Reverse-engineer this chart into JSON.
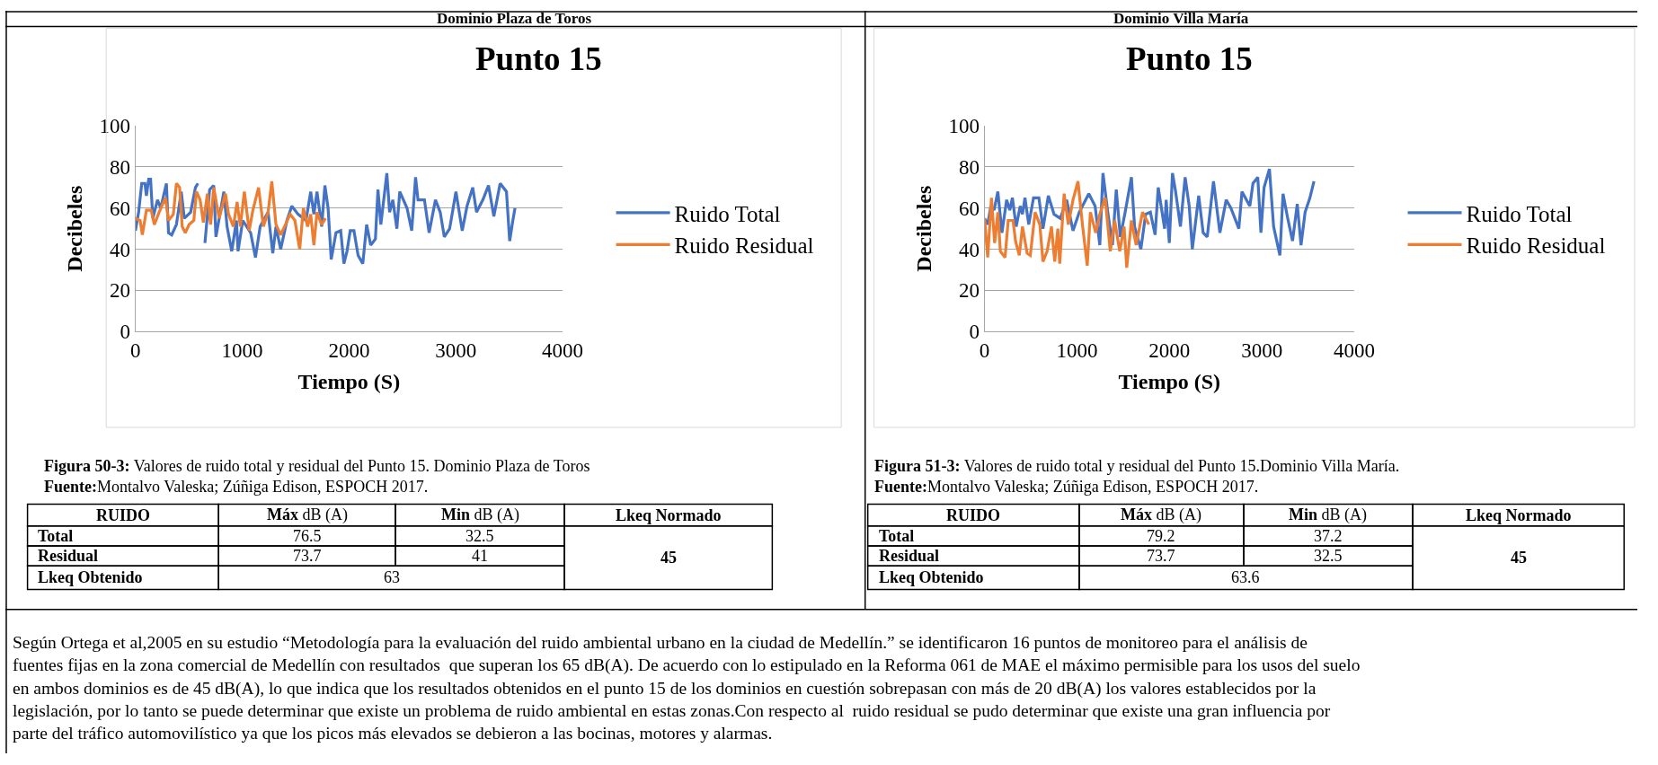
{
  "chart_data": [
    {
      "type": "line",
      "title": "Punto 15",
      "xlabel": "Tiempo (S)",
      "ylabel": "Decibeles",
      "xlim": [
        0,
        4000
      ],
      "xticks": [
        0,
        1000,
        2000,
        3000,
        4000
      ],
      "ylim": [
        0,
        100
      ],
      "yticks": [
        0,
        20,
        40,
        60,
        80,
        100
      ],
      "grid": "y",
      "legend": "right",
      "marker": "none",
      "line_style": "solid",
      "series": [
        {
          "name": "Ruido Total",
          "color": "#4472c4",
          "x": [
            0,
            30,
            59,
            89,
            103,
            124,
            142,
            163,
            207,
            237,
            290,
            310,
            340,
            384,
            429,
            458,
            517,
            562,
            585,
            621,
            651,
            695,
            733,
            754,
            828,
            858,
            902,
            946,
            961,
            1005,
            1079,
            1124,
            1168,
            1242,
            1286,
            1316,
            1360,
            1419,
            1464,
            1523,
            1597,
            1641,
            1671,
            1700,
            1744,
            1774,
            1804,
            1833,
            1878,
            1922,
            1952,
            1981,
            2011,
            2046,
            2085,
            2129,
            2165,
            2203,
            2247,
            2271,
            2298,
            2354,
            2380,
            2410,
            2448,
            2475,
            2543,
            2587,
            2623,
            2646,
            2706,
            2750,
            2809,
            2854,
            2892,
            2942,
            3001,
            3060,
            3105,
            3158,
            3194,
            3253,
            3306,
            3356,
            3415,
            3474,
            3504,
            3534,
            3554
          ],
          "values": [
            49,
            58,
            72,
            72,
            66,
            74,
            74,
            55,
            64,
            60,
            72,
            48,
            47,
            52,
            68,
            55,
            58,
            70,
            72,
            null,
            43,
            69,
            71,
            46,
            68,
            51,
            39,
            54,
            39,
            54,
            48,
            36,
            51,
            58,
            38,
            51,
            40,
            54,
            61,
            57,
            54,
            68,
            57,
            68,
            51,
            71,
            60,
            35,
            48,
            49,
            33,
            39,
            49,
            49,
            37,
            33,
            52,
            42,
            45,
            69,
            52,
            77,
            58,
            64,
            50,
            68,
            60,
            49,
            75,
            64,
            64,
            48,
            64,
            58,
            46,
            50,
            68,
            49,
            61,
            70,
            58,
            64,
            71,
            56,
            72,
            68,
            44,
            54,
            60
          ]
        },
        {
          "name": "Ruido Residual",
          "color": "#ed7d31",
          "x": [
            0,
            44,
            65,
            103,
            148,
            177,
            222,
            281,
            310,
            355,
            384,
            414,
            438,
            467,
            503,
            547,
            571,
            606,
            636,
            674,
            704,
            733,
            784,
            843,
            872,
            917,
            952,
            982,
            1020,
            1065,
            1100,
            1153,
            1198,
            1242,
            1277,
            1316,
            1360,
            1405,
            1449,
            1493,
            1538,
            1573,
            1612,
            1641,
            1671,
            1700,
            1744,
            1780
          ],
          "values": [
            55,
            54,
            47,
            59,
            59,
            52,
            58,
            65,
            54,
            57,
            72,
            70,
            51,
            48,
            52,
            54,
            68,
            64,
            53,
            67,
            52,
            70,
            55,
            67,
            57,
            51,
            63,
            51,
            68,
            49,
            59,
            70,
            51,
            58,
            73,
            52,
            47,
            52,
            57,
            54,
            40,
            60,
            51,
            57,
            42,
            58,
            52,
            55
          ]
        }
      ],
      "annotations": [
        "Dominio Plaza de Toros",
        "Figura 50-3: Valores de ruido total y residual del Punto 15. Dominio Plaza de Toros",
        "Fuente:Montalvo Valeska; Zúñiga Edison, ESPOCH 2017.",
        "RUIDO",
        "Máx dB (A)",
        "Min dB (A)",
        "Lkeq Normado",
        "Total",
        "76.5",
        "32.5",
        "45",
        "Residual",
        "73.7",
        "41",
        "Lkeq Obtenido",
        "63",
        "Según Ortega et al,2005 en su estudio “Metodología para la evaluación del ruido ambiental urbano en la ciudad de Medellín.” se identificaron 16 puntos de monitoreo para el análisis de fuentes fijas en la zona comercial de Medellín con resultados  que superan los 65 dB(A). De acuerdo con lo estipulado en la Reforma 061 de MAE el máximo permisible para los usos del suelo en ambos dominios es de 45 dB(A), lo que indica que los resultados obtenidos en el punto 15 de los dominios en cuestión sobrepasan con más de 20 dB(A) los valores establecidos por la legislación, por lo tanto se puede determinar que existe un problema de ruido ambiental en estas zonas.Con respecto al  ruido residual se pudo determinar que existe una gran influencia por parte del tráfico automovilístico ya que los picos más elevados se debieron a las bocinas, motores y alarmas."
      ]
    },
    {
      "type": "line",
      "title": "Punto 15",
      "xlabel": "Tiempo (S)",
      "ylabel": "Decibeles",
      "xlim": [
        0,
        4000
      ],
      "xticks": [
        0,
        1000,
        2000,
        3000,
        4000
      ],
      "ylim": [
        0,
        100
      ],
      "yticks": [
        0,
        20,
        40,
        60,
        80,
        100
      ],
      "grid": "y",
      "legend": "right",
      "marker": "none",
      "line_style": "solid",
      "series": [
        {
          "name": "Ruido Total",
          "color": "#4472c4",
          "x": [
            0,
            34,
            68,
            103,
            144,
            188,
            239,
            273,
            301,
            342,
            386,
            410,
            437,
            478,
            530,
            588,
            632,
            690,
            752,
            820,
            888,
            957,
            1025,
            1128,
            1196,
            1247,
            1281,
            1333,
            1384,
            1425,
            1469,
            1521,
            1589,
            1623,
            1691,
            1743,
            1794,
            1845,
            1879,
            1948,
            1965,
            1999,
            2033,
            2067,
            2119,
            2170,
            2214,
            2248,
            2317,
            2365,
            2409,
            2477,
            2546,
            2614,
            2665,
            2751,
            2785,
            2870,
            2904,
            2956,
            2990,
            3024,
            3082,
            3127,
            3195,
            3229,
            3280,
            3332,
            3383,
            3424,
            3468,
            3520,
            3564
          ],
          "values": [
            55,
            52,
            61,
            59,
            68,
            48,
            64,
            59,
            65,
            51,
            61,
            57,
            65,
            52,
            65,
            65,
            50,
            66,
            57,
            55,
            64,
            49,
            58,
            67,
            61,
            42,
            77,
            58,
            42,
            69,
            46,
            58,
            75,
            51,
            40,
            57,
            58,
            47,
            70,
            50,
            64,
            43,
            77,
            68,
            51,
            75,
            61,
            40,
            66,
            48,
            46,
            73,
            48,
            64,
            60,
            50,
            68,
            61,
            72,
            75,
            48,
            70,
            79,
            51,
            37,
            67,
            55,
            44,
            62,
            42,
            58,
            65,
            73
          ]
        },
        {
          "name": "Ruido Residual",
          "color": "#ed7d31",
          "x": [
            0,
            34,
            75,
            109,
            144,
            171,
            222,
            256,
            308,
            335,
            376,
            410,
            461,
            495,
            547,
            598,
            632,
            677,
            724,
            759,
            793,
            813,
            861,
            906,
            957,
            1011,
            1059,
            1111,
            1145,
            1203,
            1247,
            1305,
            1360,
            1408,
            1462,
            1510,
            1538,
            1589,
            1640,
            1709,
            1777
          ],
          "values": [
            55,
            36,
            65,
            43,
            58,
            39,
            36,
            54,
            54,
            44,
            37,
            51,
            38,
            37,
            58,
            52,
            34,
            39,
            51,
            34,
            50,
            33,
            67,
            52,
            64,
            73,
            52,
            32,
            58,
            48,
            57,
            65,
            39,
            54,
            39,
            51,
            31,
            54,
            42,
            58,
            52
          ]
        }
      ],
      "annotations": [
        "Dominio Villa María",
        "Figura 51-3: Valores de ruido total y residual del Punto 15.Dominio Villa María.",
        "Fuente:Montalvo Valeska; Zúñiga Edison, ESPOCH 2017.",
        "RUIDO",
        "Máx dB (A)",
        "Min dB (A)",
        "Lkeq Normado",
        "Total",
        "79.2",
        "37.2",
        "45",
        "Residual",
        "73.7",
        "32.5",
        "Lkeq Obtenido",
        "63.6"
      ]
    }
  ]
}
